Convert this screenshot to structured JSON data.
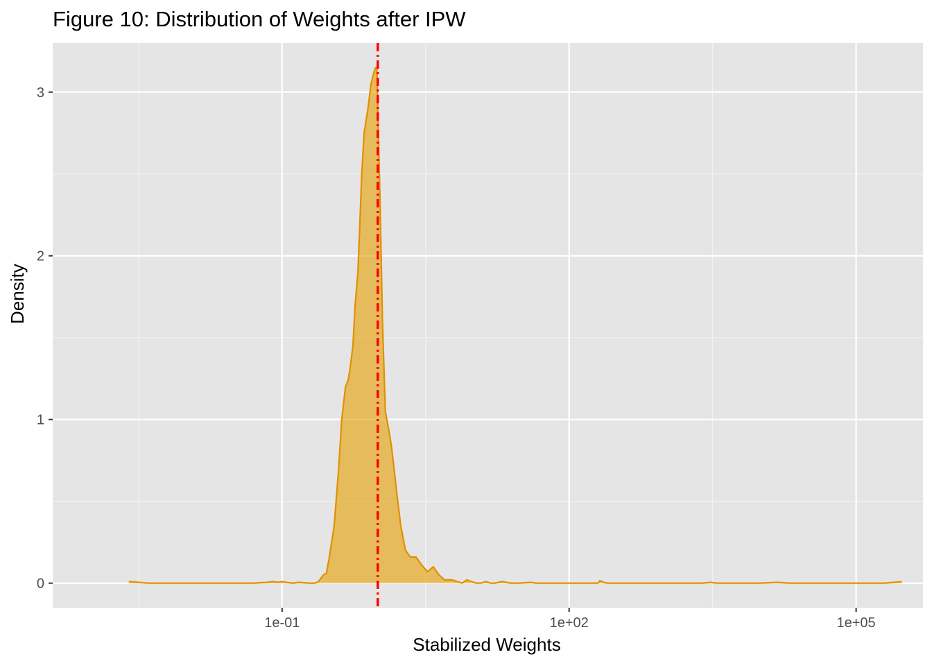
{
  "chart_data": {
    "type": "area",
    "title": "Figure 10: Distribution of Weights after IPW",
    "xlabel": "Stabilized Weights",
    "ylabel": "Density",
    "x_scale": "log10",
    "x_ticks": [
      {
        "value": 0.1,
        "label": "1e-01"
      },
      {
        "value": 100,
        "label": "1e+02"
      },
      {
        "value": 100000,
        "label": "1e+05"
      }
    ],
    "y_ticks": [
      {
        "value": 0,
        "label": "0"
      },
      {
        "value": 1,
        "label": "1"
      },
      {
        "value": 2,
        "label": "2"
      },
      {
        "value": 3,
        "label": "3"
      }
    ],
    "xlim": [
      0.0004,
      500000
    ],
    "ylim": [
      -0.15,
      3.3
    ],
    "grid": true,
    "fill_color": "#E69F00",
    "line_color": "#E09000",
    "reference_line": {
      "x": 1,
      "style": "dotdash",
      "color": "#FF0000"
    },
    "series": [
      {
        "x": [
          0.0025,
          0.004,
          0.01,
          0.05,
          0.07,
          0.08,
          0.09,
          0.1,
          0.11,
          0.13,
          0.15,
          0.19,
          0.22,
          0.24,
          0.27,
          0.29,
          0.31,
          0.35,
          0.39,
          0.42,
          0.46,
          0.49,
          0.51,
          0.55,
          0.58,
          0.62,
          0.65,
          0.68,
          0.72,
          0.79,
          0.85,
          0.91,
          0.95,
          0.98,
          1.0,
          1.05,
          1.12,
          1.2,
          1.29,
          1.38,
          1.48,
          1.58,
          1.74,
          1.95,
          2.19,
          2.51,
          2.88,
          3.31,
          3.8,
          4.37,
          5.0,
          5.5,
          6.03,
          6.76,
          7.59,
          8.51,
          9.55,
          10.7,
          12.0,
          13.5,
          15.1,
          17.0,
          18.2,
          20.0,
          22.0,
          24.5,
          30,
          40,
          45,
          50,
          55,
          60,
          80,
          150,
          200,
          210,
          230,
          250,
          300,
          1000,
          2500,
          3000,
          3500,
          5000,
          10000,
          15000,
          20000,
          30000,
          100000,
          200000,
          300000
        ],
        "y": [
          0.01,
          0.0,
          0.0,
          0.0,
          0.005,
          0.01,
          0.005,
          0.01,
          0.005,
          0.0,
          0.005,
          0.0,
          0.0,
          0.01,
          0.05,
          0.06,
          0.15,
          0.35,
          0.7,
          1.0,
          1.2,
          1.24,
          1.3,
          1.45,
          1.7,
          1.9,
          2.2,
          2.5,
          2.75,
          2.9,
          3.05,
          3.12,
          3.15,
          3.14,
          2.9,
          2.4,
          1.6,
          1.05,
          0.95,
          0.85,
          0.7,
          0.55,
          0.35,
          0.2,
          0.16,
          0.16,
          0.11,
          0.07,
          0.1,
          0.05,
          0.02,
          0.02,
          0.02,
          0.01,
          0.0,
          0.02,
          0.01,
          0.0,
          0.0,
          0.01,
          0.0,
          0.0,
          0.005,
          0.01,
          0.005,
          0.0,
          0.0,
          0.005,
          0.0,
          0.0,
          0.0,
          0.0,
          0.0,
          0.0,
          0.0,
          0.015,
          0.005,
          0.0,
          0.0,
          0.0,
          0.0,
          0.005,
          0.0,
          0.0,
          0.0,
          0.005,
          0.0,
          0.0,
          0.0,
          0.0,
          0.01
        ]
      }
    ]
  }
}
